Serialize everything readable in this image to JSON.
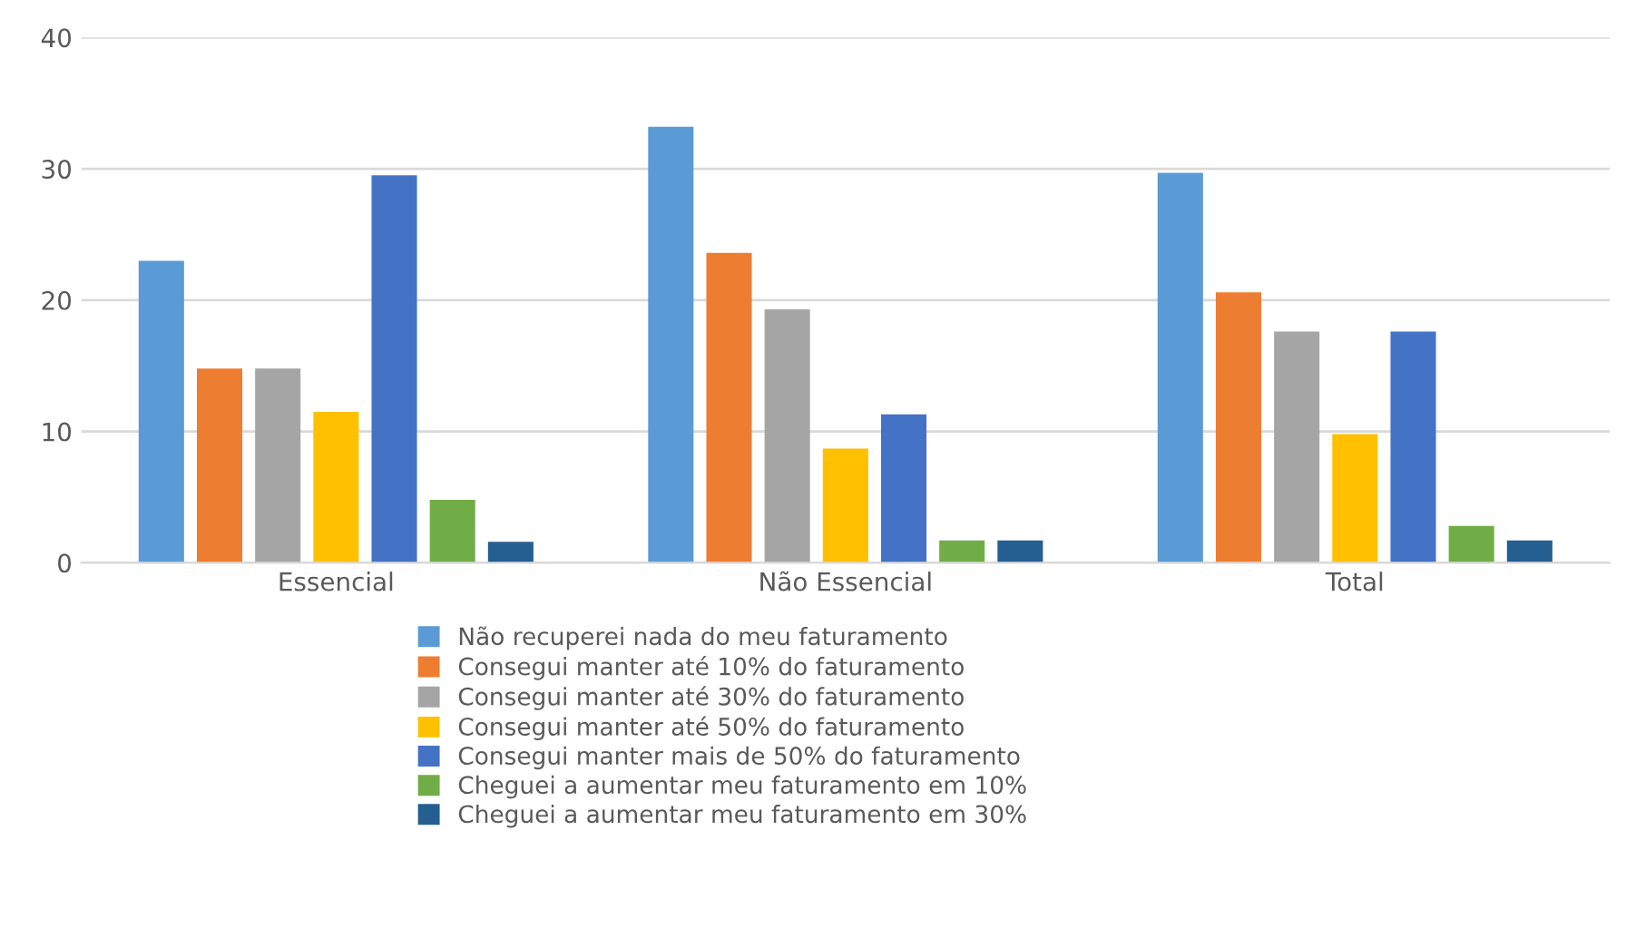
{
  "chart_data": {
    "type": "bar",
    "categories": [
      "Essencial",
      "Não Essencial",
      "Total"
    ],
    "series": [
      {
        "name": "Não recuperei nada do meu faturamento",
        "color": "#5b9bd5",
        "values": [
          23,
          33.2,
          29.7
        ]
      },
      {
        "name": "Consegui manter até 10% do faturamento",
        "color": "#ed7d31",
        "values": [
          14.8,
          23.6,
          20.6
        ]
      },
      {
        "name": "Consegui manter até 30% do faturamento",
        "color": "#a5a5a5",
        "values": [
          14.8,
          19.3,
          17.6
        ]
      },
      {
        "name": "Consegui manter até 50% do faturamento",
        "color": "#ffc000",
        "values": [
          11.5,
          8.7,
          9.8
        ]
      },
      {
        "name": "Consegui manter mais de 50% do faturamento",
        "color": "#4472c4",
        "values": [
          29.5,
          11.3,
          17.6
        ]
      },
      {
        "name": "Cheguei a aumentar meu faturamento em 10%",
        "color": "#70ad47",
        "values": [
          4.8,
          1.7,
          2.8
        ]
      },
      {
        "name": "Cheguei a aumentar meu faturamento em 30%",
        "color": "#255e91",
        "values": [
          1.6,
          1.7,
          1.7
        ]
      }
    ],
    "ylim": [
      0,
      40
    ],
    "yticks": [
      0,
      10,
      20,
      30,
      40
    ],
    "grid": "y",
    "legend": "bottom"
  }
}
